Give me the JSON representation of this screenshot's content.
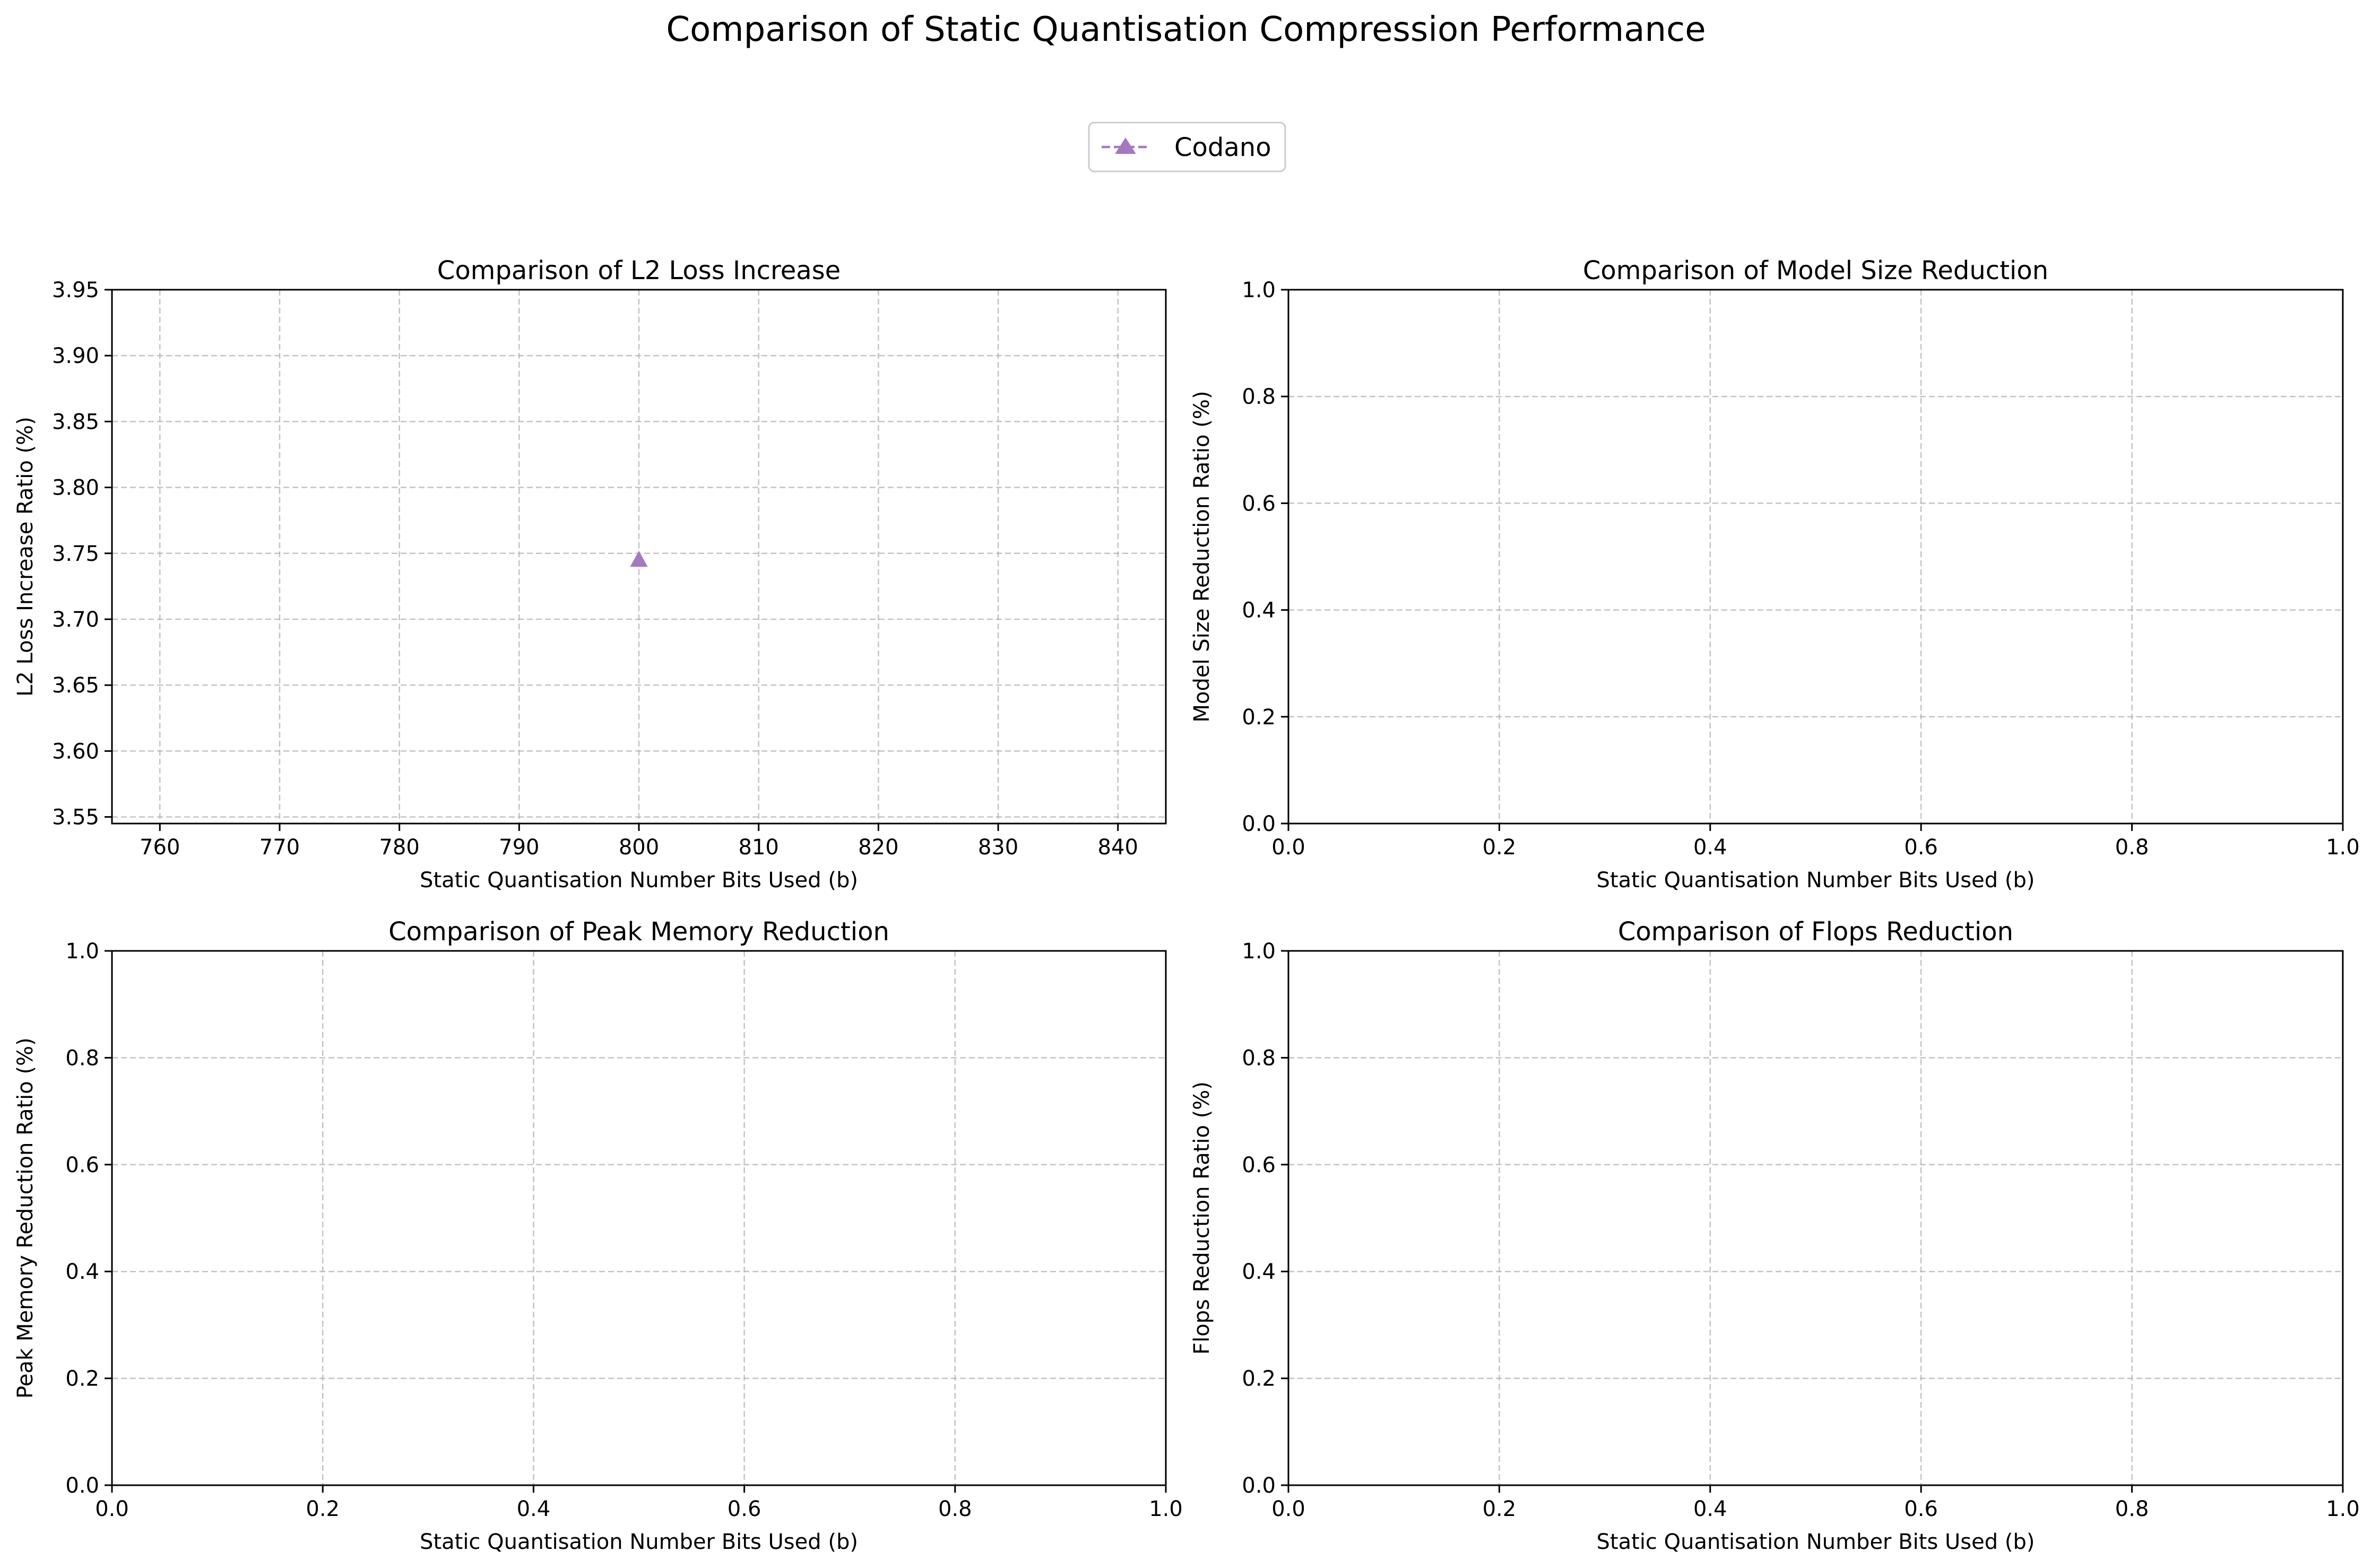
{
  "figure": {
    "suptitle": "Comparison of Static Quantisation Compression Performance",
    "legend": {
      "placement": "top-center",
      "entries": [
        {
          "name": "Codano",
          "color": "#a678c2",
          "marker": "triangle-up",
          "linestyle": "dashed"
        }
      ]
    }
  },
  "chart_data": [
    {
      "type": "scatter",
      "title": "Comparison of L2 Loss Increase",
      "xlabel": "Static Quantisation Number Bits Used (b)",
      "ylabel": "L2 Loss Increase Ratio (%)",
      "xlim": [
        756,
        844
      ],
      "ylim": [
        3.545,
        3.95
      ],
      "xticks": [
        760,
        770,
        780,
        790,
        800,
        810,
        820,
        830,
        840
      ],
      "yticks": [
        3.55,
        3.6,
        3.65,
        3.7,
        3.75,
        3.8,
        3.85,
        3.9,
        3.95
      ],
      "xtick_labels": [
        "760",
        "770",
        "780",
        "790",
        "800",
        "810",
        "820",
        "830",
        "840"
      ],
      "ytick_labels": [
        "3.55",
        "3.60",
        "3.65",
        "3.70",
        "3.75",
        "3.80",
        "3.85",
        "3.90",
        "3.95"
      ],
      "grid": true,
      "series": [
        {
          "name": "Codano",
          "x": [
            800
          ],
          "y": [
            3.745
          ]
        }
      ]
    },
    {
      "type": "line",
      "title": "Comparison of Model Size Reduction",
      "xlabel": "Static Quantisation Number Bits Used (b)",
      "ylabel": "Model Size Reduction Ratio (%)",
      "xlim": [
        0,
        1
      ],
      "ylim": [
        0,
        1
      ],
      "xticks": [
        0,
        0.2,
        0.4,
        0.6,
        0.8,
        1.0
      ],
      "yticks": [
        0,
        0.2,
        0.4,
        0.6,
        0.8,
        1.0
      ],
      "xtick_labels": [
        "0.0",
        "0.2",
        "0.4",
        "0.6",
        "0.8",
        "1.0"
      ],
      "ytick_labels": [
        "0.0",
        "0.2",
        "0.4",
        "0.6",
        "0.8",
        "1.0"
      ],
      "grid": true,
      "series": []
    },
    {
      "type": "line",
      "title": "Comparison of Peak Memory Reduction",
      "xlabel": "Static Quantisation Number Bits Used (b)",
      "ylabel": "Peak Memory Reduction Ratio (%)",
      "xlim": [
        0,
        1
      ],
      "ylim": [
        0,
        1
      ],
      "xticks": [
        0,
        0.2,
        0.4,
        0.6,
        0.8,
        1.0
      ],
      "yticks": [
        0,
        0.2,
        0.4,
        0.6,
        0.8,
        1.0
      ],
      "xtick_labels": [
        "0.0",
        "0.2",
        "0.4",
        "0.6",
        "0.8",
        "1.0"
      ],
      "ytick_labels": [
        "0.0",
        "0.2",
        "0.4",
        "0.6",
        "0.8",
        "1.0"
      ],
      "grid": true,
      "series": []
    },
    {
      "type": "line",
      "title": "Comparison of Flops Reduction",
      "xlabel": "Static Quantisation Number Bits Used (b)",
      "ylabel": "Flops Reduction Ratio (%)",
      "xlim": [
        0,
        1
      ],
      "ylim": [
        0,
        1
      ],
      "xticks": [
        0,
        0.2,
        0.4,
        0.6,
        0.8,
        1.0
      ],
      "yticks": [
        0,
        0.2,
        0.4,
        0.6,
        0.8,
        1.0
      ],
      "xtick_labels": [
        "0.0",
        "0.2",
        "0.4",
        "0.6",
        "0.8",
        "1.0"
      ],
      "ytick_labels": [
        "0.0",
        "0.2",
        "0.4",
        "0.6",
        "0.8",
        "1.0"
      ],
      "grid": true,
      "series": []
    }
  ]
}
